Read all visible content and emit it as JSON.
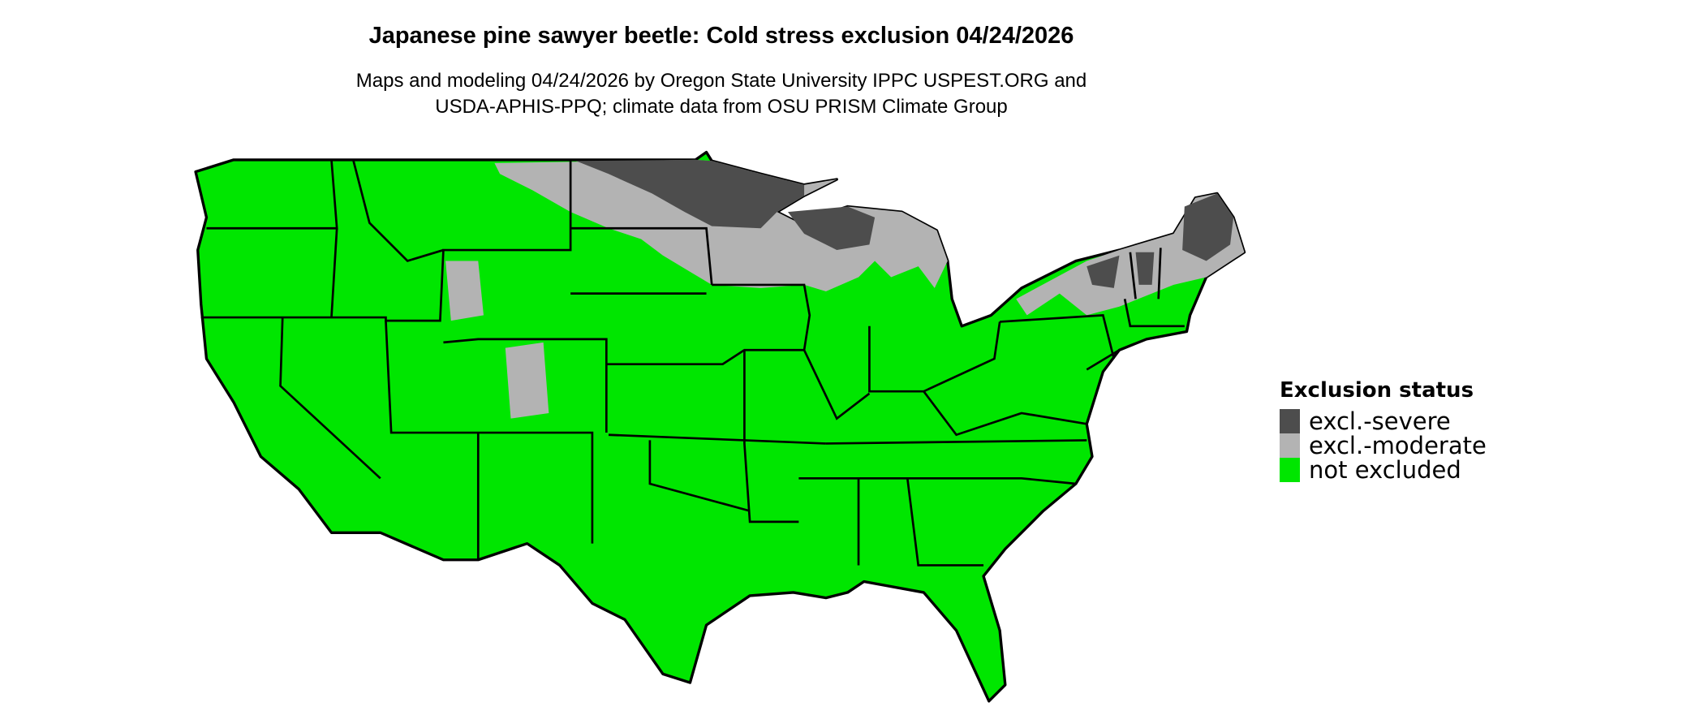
{
  "title": "Japanese pine sawyer beetle: Cold stress exclusion 04/24/2026",
  "subtitle_line1": "Maps and modeling 04/24/2026 by Oregon State University IPPC USPEST.ORG and",
  "subtitle_line2": "USDA-APHIS-PPQ; climate data from OSU PRISM Climate Group",
  "legend": {
    "title": "Exclusion status",
    "items": [
      {
        "label": "excl.-severe",
        "color": "#4d4d4d"
      },
      {
        "label": "excl.-moderate",
        "color": "#b3b3b3"
      },
      {
        "label": "not excluded",
        "color": "#00e600"
      }
    ]
  },
  "map": {
    "region": "Contiguous United States",
    "border_color": "#000000"
  }
}
